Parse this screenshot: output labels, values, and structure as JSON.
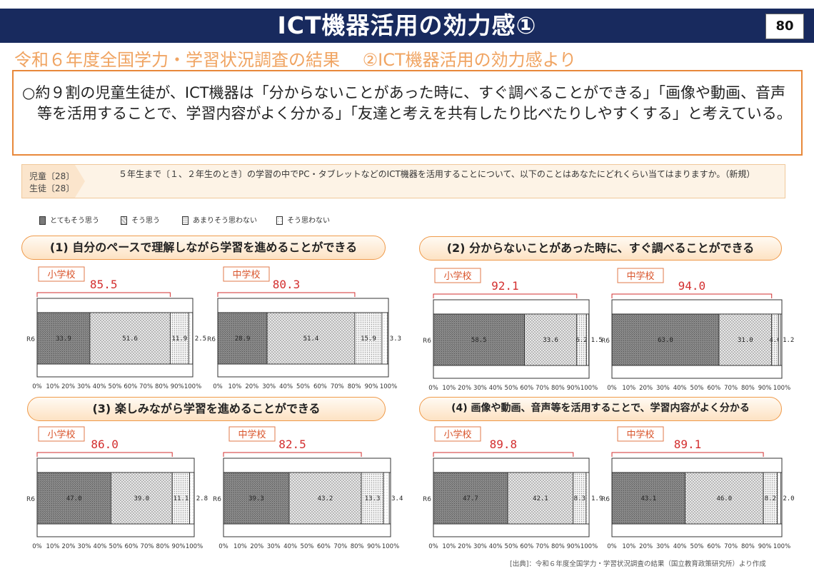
{
  "header": {
    "title": "ICT機器活用の効力感①",
    "page_number": "80"
  },
  "subtitle": "令和６年度全国学力・学習状況調査の結果　 ②ICT機器活用の効力感より",
  "summary": "○約９割の児童生徒が、ICT機器は「分からないことがあった時に、すぐ調べることができる」「画像や動画、音声等を活用することで、学習内容がよく分かる」「友達と考えを共有したり比べたりしやすくする」と考えている。",
  "question": {
    "tag_elementary": "児童〔28〕",
    "tag_junior": "生徒〔28〕",
    "text": "５年生まで〔１、２年生のとき〕の学習の中でPC・タブレットなどのICT機器を活用することについて、以下のことはあなたにどれくらい当てはまりますか。（新規）"
  },
  "legend": [
    {
      "label": "とてもそう思う",
      "pattern": "dark"
    },
    {
      "label": "そう思う",
      "pattern": "checker"
    },
    {
      "label": "あまりそう思わない",
      "pattern": "dots"
    },
    {
      "label": "そう思わない",
      "pattern": "sparse"
    }
  ],
  "sections": [
    {
      "title": "(1) 自分のペースで理解しながら学習を進めることができる"
    },
    {
      "title": "(2) 分からないことがあった時に、すぐ調べることができる"
    },
    {
      "title": "(3) 楽しみながら学習を進めることができる"
    },
    {
      "title": "(4) 画像や動画、音声等を活用することで、学習内容がよく分かる"
    }
  ],
  "chart_data": [
    {
      "type": "bar",
      "orientation": "horizontal-stacked",
      "group": "小学校",
      "section": "(1)",
      "categories": [
        "R6"
      ],
      "total_label": "85.5",
      "series": [
        {
          "name": "とてもそう思う",
          "values": [
            33.9
          ]
        },
        {
          "name": "そう思う",
          "values": [
            51.6
          ]
        },
        {
          "name": "あまりそう思わない",
          "values": [
            11.9
          ]
        },
        {
          "name": "そう思わない",
          "values": [
            2.5
          ]
        }
      ],
      "segment_labels": [
        "33.9",
        "51.6",
        "11.9",
        "2.5"
      ],
      "xlim": [
        0,
        100
      ],
      "xticks": [
        "0%",
        "10%",
        "20%",
        "30%",
        "40%",
        "50%",
        "60%",
        "70%",
        "80%",
        "90%",
        "100%"
      ]
    },
    {
      "type": "bar",
      "orientation": "horizontal-stacked",
      "group": "中学校",
      "section": "(1)",
      "categories": [
        "R6"
      ],
      "total_label": "80.3",
      "series": [
        {
          "name": "とてもそう思う",
          "values": [
            28.9
          ]
        },
        {
          "name": "そう思う",
          "values": [
            51.4
          ]
        },
        {
          "name": "あまりそう思わない",
          "values": [
            15.9
          ]
        },
        {
          "name": "そう思わない",
          "values": [
            3.3
          ]
        }
      ],
      "segment_labels": [
        "28.9",
        "51.4",
        "15.9",
        "3.3"
      ],
      "xlim": [
        0,
        100
      ],
      "xticks": [
        "0%",
        "10%",
        "20%",
        "30%",
        "40%",
        "50%",
        "60%",
        "70%",
        "80%",
        "90%",
        "100%"
      ]
    },
    {
      "type": "bar",
      "orientation": "horizontal-stacked",
      "group": "小学校",
      "section": "(2)",
      "categories": [
        "R6"
      ],
      "total_label": "92.1",
      "series": [
        {
          "name": "とてもそう思う",
          "values": [
            58.5
          ]
        },
        {
          "name": "そう思う",
          "values": [
            33.6
          ]
        },
        {
          "name": "あまりそう思わない",
          "values": [
            6.2
          ]
        },
        {
          "name": "そう思わない",
          "values": [
            1.5
          ]
        }
      ],
      "segment_labels": [
        "58.5",
        "33.6",
        "6.2",
        "1.5"
      ],
      "xlim": [
        0,
        100
      ],
      "xticks": [
        "0%",
        "10%",
        "20%",
        "30%",
        "40%",
        "50%",
        "60%",
        "70%",
        "80%",
        "90%",
        "100%"
      ]
    },
    {
      "type": "bar",
      "orientation": "horizontal-stacked",
      "group": "中学校",
      "section": "(2)",
      "categories": [
        "R6"
      ],
      "total_label": "94.0",
      "series": [
        {
          "name": "とてもそう思う",
          "values": [
            63.0
          ]
        },
        {
          "name": "そう思う",
          "values": [
            31.0
          ]
        },
        {
          "name": "あまりそう思わない",
          "values": [
            4.0
          ]
        },
        {
          "name": "そう思わない",
          "values": [
            1.2
          ]
        }
      ],
      "segment_labels": [
        "63.0",
        "31.0",
        "4.0",
        "1.2"
      ],
      "xlim": [
        0,
        100
      ],
      "xticks": [
        "0%",
        "10%",
        "20%",
        "30%",
        "40%",
        "50%",
        "60%",
        "70%",
        "80%",
        "90%",
        "100%"
      ]
    },
    {
      "type": "bar",
      "orientation": "horizontal-stacked",
      "group": "小学校",
      "section": "(3)",
      "categories": [
        "R6"
      ],
      "total_label": "86.0",
      "series": [
        {
          "name": "とてもそう思う",
          "values": [
            47.0
          ]
        },
        {
          "name": "そう思う",
          "values": [
            39.0
          ]
        },
        {
          "name": "あまりそう思わない",
          "values": [
            11.1
          ]
        },
        {
          "name": "そう思わない",
          "values": [
            2.8
          ]
        }
      ],
      "segment_labels": [
        "47.0",
        "39.0",
        "11.1",
        "2.8"
      ],
      "xlim": [
        0,
        100
      ],
      "xticks": [
        "0%",
        "10%",
        "20%",
        "30%",
        "40%",
        "50%",
        "60%",
        "70%",
        "80%",
        "90%",
        "100%"
      ]
    },
    {
      "type": "bar",
      "orientation": "horizontal-stacked",
      "group": "中学校",
      "section": "(3)",
      "categories": [
        "R6"
      ],
      "total_label": "82.5",
      "series": [
        {
          "name": "とてもそう思う",
          "values": [
            39.3
          ]
        },
        {
          "name": "そう思う",
          "values": [
            43.2
          ]
        },
        {
          "name": "あまりそう思わない",
          "values": [
            13.3
          ]
        },
        {
          "name": "そう思わない",
          "values": [
            3.4
          ]
        }
      ],
      "segment_labels": [
        "39.3",
        "43.2",
        "13.3",
        "3.4"
      ],
      "xlim": [
        0,
        100
      ],
      "xticks": [
        "0%",
        "10%",
        "20%",
        "30%",
        "40%",
        "50%",
        "60%",
        "70%",
        "80%",
        "90%",
        "100%"
      ]
    },
    {
      "type": "bar",
      "orientation": "horizontal-stacked",
      "group": "小学校",
      "section": "(4)",
      "categories": [
        "R6"
      ],
      "total_label": "89.8",
      "series": [
        {
          "name": "とてもそう思う",
          "values": [
            47.7
          ]
        },
        {
          "name": "そう思う",
          "values": [
            42.1
          ]
        },
        {
          "name": "あまりそう思わない",
          "values": [
            8.3
          ]
        },
        {
          "name": "そう思わない",
          "values": [
            1.9
          ]
        }
      ],
      "segment_labels": [
        "47.7",
        "42.1",
        "8.3",
        "1.9"
      ],
      "xlim": [
        0,
        100
      ],
      "xticks": [
        "0%",
        "10%",
        "20%",
        "30%",
        "40%",
        "50%",
        "60%",
        "70%",
        "80%",
        "90%",
        "100%"
      ]
    },
    {
      "type": "bar",
      "orientation": "horizontal-stacked",
      "group": "中学校",
      "section": "(4)",
      "categories": [
        "R6"
      ],
      "total_label": "89.1",
      "series": [
        {
          "name": "とてもそう思う",
          "values": [
            43.1
          ]
        },
        {
          "name": "そう思う",
          "values": [
            46.0
          ]
        },
        {
          "name": "あまりそう思わない",
          "values": [
            8.2
          ]
        },
        {
          "name": "そう思わない",
          "values": [
            2.0
          ]
        }
      ],
      "segment_labels": [
        "43.1",
        "46.0",
        "8.2",
        "2.0"
      ],
      "xlim": [
        0,
        100
      ],
      "xticks": [
        "0%",
        "10%",
        "20%",
        "30%",
        "40%",
        "50%",
        "60%",
        "70%",
        "80%",
        "90%",
        "100%"
      ]
    }
  ],
  "source": "[出典]：令和６年度全国学力・学習状況調査の結果（国立教育政策研究所）より作成"
}
